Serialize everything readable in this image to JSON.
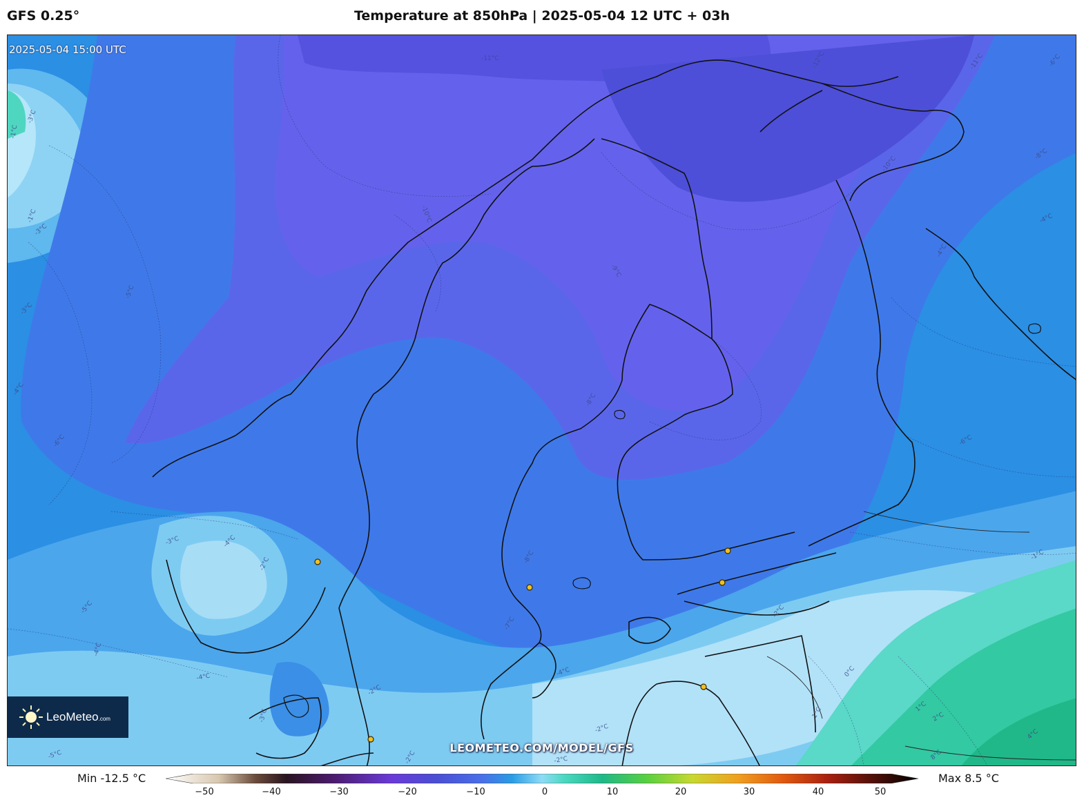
{
  "header": {
    "model": "GFS 0.25°",
    "title": "Temperature at 850hPa | 2025-05-04 12 UTC + 03h"
  },
  "map": {
    "valid_time": "2025-05-04 15:00 UTC",
    "watermark": "LEOMETEO.COM/MODEL/GFS",
    "logo": {
      "name": "LeoMeteo",
      "suffix": ".com"
    },
    "contour_labels": [
      {
        "text": "-11°C"
      },
      {
        "text": "-12°C"
      },
      {
        "text": "-11°C"
      },
      {
        "text": "-6°C"
      },
      {
        "text": "-10°C"
      },
      {
        "text": "-8°C"
      },
      {
        "text": "-4°C"
      },
      {
        "text": "-4°C"
      },
      {
        "text": "-9°C"
      },
      {
        "text": "-10°C"
      },
      {
        "text": "-8°C"
      },
      {
        "text": "-6°C"
      },
      {
        "text": "-1°C"
      },
      {
        "text": "-3°C"
      },
      {
        "text": "-1°C"
      },
      {
        "text": "-5°C"
      },
      {
        "text": "-3°C"
      },
      {
        "text": "-4°C"
      },
      {
        "text": "-6°C"
      },
      {
        "text": "-3°C"
      },
      {
        "text": "-3°C"
      },
      {
        "text": "-2°C"
      },
      {
        "text": "-4°C"
      },
      {
        "text": "-5°C"
      },
      {
        "text": "-4°C"
      },
      {
        "text": "-4°C"
      },
      {
        "text": "-8°C"
      },
      {
        "text": "-7°C"
      },
      {
        "text": "-4°C"
      },
      {
        "text": "-2°C"
      },
      {
        "text": "-1°C"
      },
      {
        "text": "0°C"
      },
      {
        "text": "1°C"
      },
      {
        "text": "2°C"
      },
      {
        "text": "4°C"
      },
      {
        "text": "8°C"
      },
      {
        "text": "1°C"
      },
      {
        "text": "-2°C"
      },
      {
        "text": "-2°C"
      },
      {
        "text": "-3°C"
      },
      {
        "text": "-5°C"
      },
      {
        "text": "-2°C"
      },
      {
        "text": "-2°C"
      }
    ],
    "colors": {
      "ocean_cold": "#1a9be0",
      "mid_blue": "#2f86e6",
      "blue_violet": "#4a6fe8",
      "violet": "#6660e8",
      "deep_violet": "#4a50d4",
      "light_blue": "#7ecdf2",
      "pale_blue": "#b8e6fa",
      "teal": "#5ad8c8",
      "green": "#2ec49a",
      "coast": "#111111",
      "city_marker": "#f0c020"
    }
  },
  "colorbar": {
    "min_label": "Min -12.5 °C",
    "max_label": "Max 8.5 °C",
    "ticks": [
      "−50",
      "−40",
      "−30",
      "−20",
      "−10",
      "0",
      "10",
      "20",
      "30",
      "40",
      "50"
    ]
  }
}
